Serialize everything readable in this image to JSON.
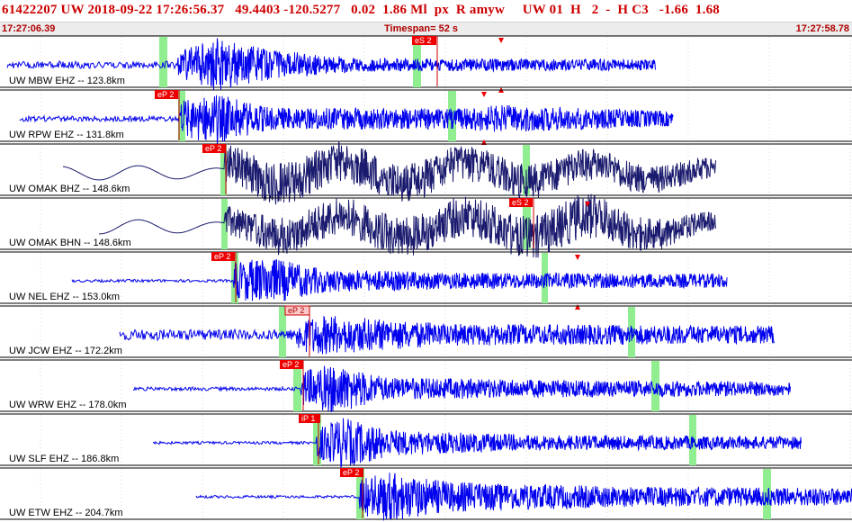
{
  "header": {
    "title": "61422207 UW 2018-09-22 17:26:56.37   49.4403 -120.5277   0.02  1.86 Ml  px  R amyw     UW 01  H   2  -  H C3   -1.66  1.68",
    "start_time": "17:27:06.39",
    "timespan_label": "Timespan=",
    "timespan_value": "52 s",
    "end_time": "17:27:58.78"
  },
  "colors": {
    "trace_blue": "#0000ee",
    "trace_navy": "#1a1a6e",
    "pick_red": "#ee0000",
    "window_green": "#90ee90",
    "header_red": "#cc0000"
  },
  "traces": [
    {
      "label": "UW MBW EHZ -- 123.8km",
      "color": "navy_blue",
      "picks": [
        "eS 2"
      ]
    },
    {
      "label": "UW RPW EHZ -- 131.8km",
      "color": "blue",
      "picks": [
        "eP 2"
      ]
    },
    {
      "label": "UW OMAK BHZ -- 148.6km",
      "color": "navy",
      "picks": [
        "eP 2"
      ]
    },
    {
      "label": "UW OMAK BHN -- 148.6km",
      "color": "navy",
      "picks": [
        "eS 2"
      ]
    },
    {
      "label": "UW NEL EHZ -- 153.0km",
      "color": "blue",
      "picks": [
        "eP 2"
      ]
    },
    {
      "label": "UW JCW EHZ -- 172.2km",
      "color": "blue",
      "picks": [
        "eP 2"
      ]
    },
    {
      "label": "UW WRW EHZ -- 178.0km",
      "color": "blue",
      "picks": [
        "eP 2"
      ]
    },
    {
      "label": "UW SLF EHZ -- 186.8km",
      "color": "blue",
      "picks": [
        "iP 1"
      ]
    },
    {
      "label": "UW ETW EHZ -- 204.7km",
      "color": "blue",
      "picks": [
        "eP 2"
      ]
    }
  ]
}
